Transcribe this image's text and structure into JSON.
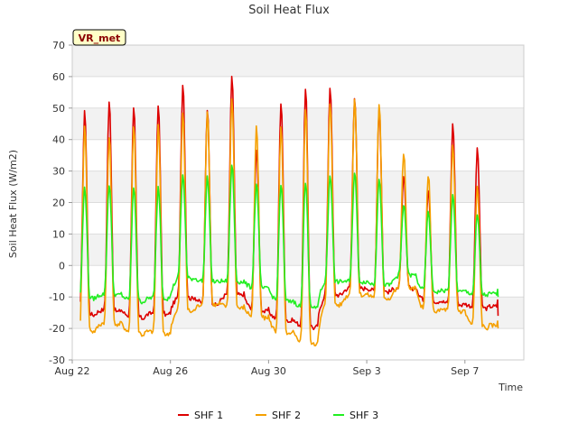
{
  "chart_data": {
    "type": "line",
    "title": "Soil Heat Flux",
    "xlabel": "Time",
    "ylabel": "Soil Heat Flux (W/m2)",
    "ylim": [
      -30,
      70
    ],
    "yticks": [
      -30,
      -20,
      -10,
      0,
      10,
      20,
      30,
      40,
      50,
      60,
      70
    ],
    "xlim_days": [
      0,
      18.4
    ],
    "xticks": [
      {
        "day": 0,
        "label": "Aug 22"
      },
      {
        "day": 4,
        "label": "Aug 26"
      },
      {
        "day": 8,
        "label": "Aug 30"
      },
      {
        "day": 12,
        "label": "Sep 3"
      },
      {
        "day": 16,
        "label": "Sep 7"
      }
    ],
    "station_badge": "VR_met",
    "grid": true,
    "legend_position": "bottom-center",
    "series_samples_per_day": 24,
    "series": [
      {
        "name": "SHF 1",
        "color": "#dd0000",
        "start_day": 0.3,
        "end_day": 17.35,
        "daily_peaks": [
          49,
          52,
          50,
          51,
          58,
          50,
          60,
          37,
          52,
          56,
          57,
          54,
          50,
          28,
          24,
          45,
          37
        ],
        "daily_troughs": [
          -15,
          -14,
          -16,
          -15,
          -10,
          -12,
          -9,
          -14,
          -17,
          -19,
          -9,
          -7,
          -8,
          -7,
          -11,
          -12,
          -13
        ],
        "end_value": -16
      },
      {
        "name": "SHF 2",
        "color": "#f5a000",
        "start_day": 0.3,
        "end_day": 17.35,
        "daily_peaks": [
          45,
          41,
          45,
          45,
          49,
          49,
          53,
          44,
          44,
          50,
          52,
          53,
          51,
          36,
          29,
          38,
          25
        ],
        "daily_troughs": [
          -20,
          -18,
          -21,
          -21,
          -14,
          -12,
          -13,
          -16,
          -21,
          -24,
          -12,
          -9,
          -10,
          -7,
          -14,
          -14,
          -19
        ],
        "end_value": -20
      },
      {
        "name": "SHF 3",
        "color": "#22ee22",
        "start_day": 0.3,
        "end_day": 17.35,
        "daily_peaks": [
          25,
          26,
          25,
          25,
          29,
          28,
          32,
          26,
          26,
          27,
          29,
          30,
          28,
          19,
          17,
          22,
          16
        ],
        "daily_troughs": [
          -10,
          -9,
          -11,
          -10,
          -4,
          -5,
          -5,
          -7,
          -11,
          -13,
          -5,
          -5,
          -6,
          -3,
          -8,
          -8,
          -9
        ],
        "end_value": -10
      }
    ]
  }
}
